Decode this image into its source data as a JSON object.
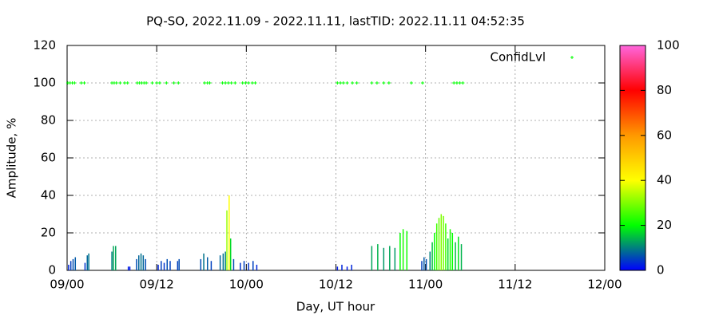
{
  "chart_data": {
    "type": "impulse",
    "title": "PQ-SO, 2022.11.09 - 2022.11.11, lastTID: 2022.11.11 04:52:35",
    "x_label": "Day, UT hour",
    "y_label": "Amplitude, %",
    "xlim": [
      0,
      72
    ],
    "xticks": [
      {
        "value": 0,
        "label": "09/00"
      },
      {
        "value": 12,
        "label": "09/12"
      },
      {
        "value": 24,
        "label": "10/00"
      },
      {
        "value": 36,
        "label": "10/12"
      },
      {
        "value": 48,
        "label": "11/00"
      },
      {
        "value": 60,
        "label": "11/12"
      },
      {
        "value": 72,
        "label": "12/00"
      }
    ],
    "ylim": [
      0,
      120
    ],
    "yticks": [
      0,
      20,
      40,
      60,
      80,
      100,
      120
    ],
    "grid": true,
    "palette": [
      "#0000ff",
      "#00ff00",
      "#ffff00",
      "#ff9900",
      "#ff0000",
      "#ff66dd"
    ],
    "colorbar": {
      "lim": [
        0,
        100
      ],
      "ticks": [
        0,
        20,
        40,
        60,
        80,
        100
      ]
    },
    "series": [
      {
        "x": [
          0.2,
          0.5,
          0.8,
          1.1,
          2.4,
          2.7,
          2.9,
          6.0,
          6.2,
          6.5,
          8.2,
          8.4,
          9.3,
          9.6,
          9.9,
          10.2,
          10.5,
          12.2,
          12.6,
          13.0,
          13.4,
          13.8,
          14.8,
          15.0,
          17.9,
          18.3,
          18.8,
          19.3,
          20.5,
          20.9,
          21.2,
          21.4,
          21.7,
          21.9,
          22.3,
          23.2,
          23.7,
          24.3,
          24.9,
          25.4,
          36.2,
          36.8,
          37.5,
          38.1,
          40.8,
          41.6,
          42.4,
          43.2,
          43.9,
          44.6,
          45.0,
          45.5,
          47.5,
          47.8,
          48.1,
          48.6,
          48.9,
          49.2,
          49.5,
          49.8,
          50.1,
          50.4,
          50.7,
          51.0,
          51.3,
          51.6,
          52.0,
          52.4,
          52.8
        ],
        "values": [
          3,
          5,
          6,
          7,
          4,
          8,
          9,
          10,
          13,
          13,
          2,
          2,
          6,
          8,
          9,
          8,
          6,
          3,
          5,
          4,
          6,
          5,
          5,
          6,
          6,
          9,
          7,
          5,
          8,
          9,
          10,
          32,
          40,
          17,
          6,
          4,
          5,
          4,
          5,
          3,
          2,
          3,
          2,
          3,
          13,
          14,
          12,
          13,
          12,
          20,
          22,
          21,
          5,
          7,
          6,
          10,
          15,
          20,
          25,
          28,
          30,
          29,
          25,
          17,
          22,
          20,
          15,
          18,
          14
        ]
      },
      {
        "name": "ConfidLvl",
        "color": "#00ff00",
        "marker": "plus",
        "x": [
          0.1,
          0.4,
          0.7,
          1.0,
          1.9,
          2.3,
          6.0,
          6.3,
          6.6,
          7.1,
          7.7,
          8.1,
          9.4,
          9.7,
          10.0,
          10.3,
          10.6,
          11.4,
          12.0,
          12.4,
          13.3,
          14.3,
          14.9,
          18.4,
          18.8,
          19.1,
          20.8,
          21.2,
          21.6,
          22.0,
          22.5,
          23.5,
          23.9,
          24.3,
          24.8,
          25.2,
          36.2,
          36.6,
          37.0,
          37.5,
          38.2,
          38.8,
          40.8,
          41.5,
          42.4,
          43.1,
          46.1,
          47.6,
          51.8,
          52.2,
          52.6,
          53.0
        ],
        "values": [
          100,
          100,
          100,
          100,
          100,
          100,
          100,
          100,
          100,
          100,
          100,
          100,
          100,
          100,
          100,
          100,
          100,
          100,
          100,
          100,
          100,
          100,
          100,
          100,
          100,
          100,
          100,
          100,
          100,
          100,
          100,
          100,
          100,
          100,
          100,
          100,
          100,
          100,
          100,
          100,
          100,
          100,
          100,
          100,
          100,
          100,
          100,
          100,
          100,
          100,
          100,
          100
        ]
      }
    ]
  }
}
